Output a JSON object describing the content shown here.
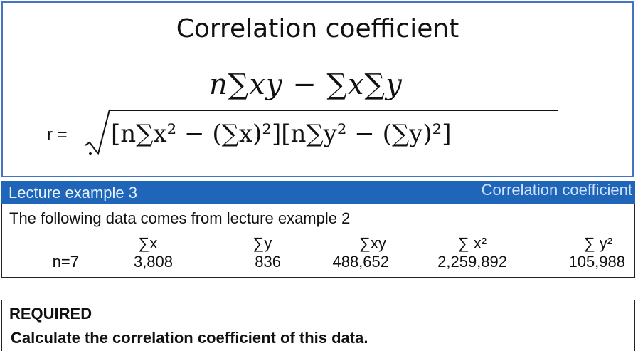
{
  "formula": {
    "title": "Correlation coefficient",
    "r_label": "r =",
    "numerator": "n∑xy − ∑x∑y",
    "denominator": "[n∑x² − (∑x)²][n∑y² − (∑y)²]"
  },
  "header": {
    "left": "Lecture example 3",
    "right": "Correlation coefficient",
    "background": "#1f66b8"
  },
  "data": {
    "intro": "The following data comes from lecture example 2",
    "n": "n=7",
    "columns": [
      {
        "head": "∑x",
        "value": "3,808"
      },
      {
        "head": "∑y",
        "value": "836"
      },
      {
        "head": "∑xy",
        "value": "488,652"
      },
      {
        "head": "∑ x²",
        "value": "2,259,892"
      },
      {
        "head": "∑ y²",
        "value": "105,988"
      }
    ]
  },
  "required": {
    "title": "REQUIRED",
    "text": "Calculate the correlation coefficient of this data."
  }
}
